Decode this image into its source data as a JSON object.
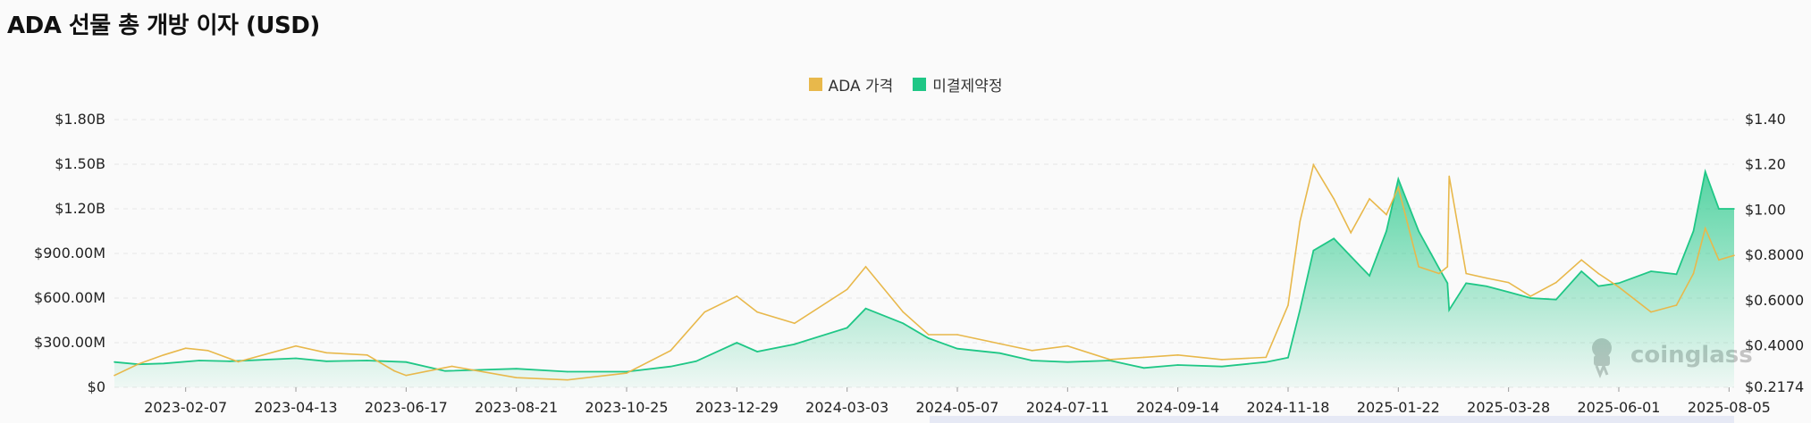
{
  "title": "ADA 선물 총 개방 이자 (USD)",
  "legend": [
    {
      "label": "ADA 가격",
      "color": "#e8b84b"
    },
    {
      "label": "미결제약정",
      "color": "#1fc786"
    }
  ],
  "watermark": "coinglass",
  "chart_data": {
    "type": "line",
    "x_axis": {
      "tick_labels": [
        "2023-02-07",
        "2023-04-13",
        "2023-06-17",
        "2023-08-21",
        "2023-10-25",
        "2023-12-29",
        "2024-03-03",
        "2024-05-07",
        "2024-07-11",
        "2024-09-14",
        "2024-11-18",
        "2025-01-22",
        "2025-03-28",
        "2025-06-01",
        "2025-08-05"
      ],
      "range": [
        "2022-12-27",
        "2025-08-08"
      ]
    },
    "y_left": {
      "label": "",
      "ticks": [
        0,
        300000000,
        600000000,
        900000000,
        1200000000,
        1500000000,
        1800000000
      ],
      "tick_labels": [
        "$0",
        "$300.00M",
        "$600.00M",
        "$900.00M",
        "$1.20B",
        "$1.50B",
        "$1.80B"
      ],
      "range": [
        0,
        1800000000
      ]
    },
    "y_right": {
      "label": "",
      "ticks": [
        0.2174,
        0.4,
        0.6,
        0.8,
        1.0,
        1.2,
        1.4
      ],
      "tick_labels": [
        "$0.2174",
        "$0.4000",
        "$0.6000",
        "$0.8000",
        "$1.00",
        "$1.20",
        "$1.40"
      ],
      "range": [
        0.2174,
        1.4
      ]
    },
    "grid": true,
    "legend_position": "top-center",
    "series": [
      {
        "name": "미결제약정",
        "type": "area",
        "axis": "left",
        "color": "#1fc786",
        "x": [
          "2022-12-27",
          "2023-01-10",
          "2023-01-25",
          "2023-02-15",
          "2023-03-05",
          "2023-04-13",
          "2023-05-01",
          "2023-05-25",
          "2023-06-17",
          "2023-07-10",
          "2023-08-21",
          "2023-09-20",
          "2023-10-25",
          "2023-11-20",
          "2023-12-05",
          "2023-12-29",
          "2024-01-10",
          "2024-02-01",
          "2024-03-03",
          "2024-03-14",
          "2024-04-05",
          "2024-04-20",
          "2024-05-07",
          "2024-06-01",
          "2024-06-20",
          "2024-07-11",
          "2024-08-05",
          "2024-08-25",
          "2024-09-14",
          "2024-10-10",
          "2024-11-05",
          "2024-11-18",
          "2024-11-25",
          "2024-12-03",
          "2024-12-15",
          "2024-12-25",
          "2025-01-05",
          "2025-01-15",
          "2025-01-22",
          "2025-02-03",
          "2025-02-15",
          "2025-02-20",
          "2025-02-21",
          "2025-03-03",
          "2025-03-15",
          "2025-03-28",
          "2025-04-10",
          "2025-04-25",
          "2025-05-10",
          "2025-05-20",
          "2025-06-01",
          "2025-06-20",
          "2025-07-05",
          "2025-07-15",
          "2025-07-22",
          "2025-07-30",
          "2025-08-08"
        ],
        "values": [
          170000000,
          155000000,
          160000000,
          180000000,
          175000000,
          195000000,
          175000000,
          180000000,
          170000000,
          110000000,
          125000000,
          105000000,
          105000000,
          140000000,
          175000000,
          300000000,
          240000000,
          290000000,
          400000000,
          530000000,
          430000000,
          330000000,
          260000000,
          230000000,
          180000000,
          170000000,
          180000000,
          130000000,
          150000000,
          140000000,
          170000000,
          200000000,
          520000000,
          920000000,
          1000000000,
          880000000,
          750000000,
          1050000000,
          1400000000,
          1050000000,
          800000000,
          700000000,
          520000000,
          700000000,
          680000000,
          640000000,
          600000000,
          590000000,
          780000000,
          680000000,
          700000000,
          780000000,
          760000000,
          1050000000,
          1450000000,
          1200000000,
          1200000000
        ]
      },
      {
        "name": "ADA 가격",
        "type": "line",
        "axis": "right",
        "color": "#e8b84b",
        "x": [
          "2022-12-27",
          "2023-01-10",
          "2023-01-25",
          "2023-02-07",
          "2023-02-20",
          "2023-03-10",
          "2023-04-13",
          "2023-05-01",
          "2023-05-25",
          "2023-06-10",
          "2023-06-17",
          "2023-07-14",
          "2023-08-21",
          "2023-09-20",
          "2023-10-25",
          "2023-11-20",
          "2023-12-10",
          "2023-12-29",
          "2024-01-10",
          "2024-02-01",
          "2024-03-03",
          "2024-03-14",
          "2024-04-05",
          "2024-04-20",
          "2024-05-07",
          "2024-06-01",
          "2024-06-20",
          "2024-07-11",
          "2024-08-05",
          "2024-08-25",
          "2024-09-14",
          "2024-10-10",
          "2024-11-05",
          "2024-11-18",
          "2024-11-25",
          "2024-12-03",
          "2024-12-15",
          "2024-12-25",
          "2025-01-05",
          "2025-01-15",
          "2025-01-22",
          "2025-02-03",
          "2025-02-15",
          "2025-02-20",
          "2025-02-21",
          "2025-03-03",
          "2025-03-15",
          "2025-03-28",
          "2025-04-10",
          "2025-04-25",
          "2025-05-10",
          "2025-05-20",
          "2025-06-01",
          "2025-06-20",
          "2025-07-05",
          "2025-07-15",
          "2025-07-22",
          "2025-07-30",
          "2025-08-08"
        ],
        "values": [
          0.27,
          0.32,
          0.36,
          0.39,
          0.38,
          0.33,
          0.4,
          0.37,
          0.36,
          0.29,
          0.27,
          0.31,
          0.26,
          0.25,
          0.28,
          0.38,
          0.55,
          0.62,
          0.55,
          0.5,
          0.65,
          0.75,
          0.55,
          0.45,
          0.45,
          0.41,
          0.38,
          0.4,
          0.34,
          0.35,
          0.36,
          0.34,
          0.35,
          0.58,
          0.95,
          1.2,
          1.05,
          0.9,
          1.05,
          0.98,
          1.1,
          0.75,
          0.72,
          0.75,
          1.15,
          0.72,
          0.7,
          0.68,
          0.62,
          0.68,
          0.78,
          0.72,
          0.66,
          0.55,
          0.58,
          0.72,
          0.92,
          0.78,
          0.8
        ]
      }
    ]
  }
}
